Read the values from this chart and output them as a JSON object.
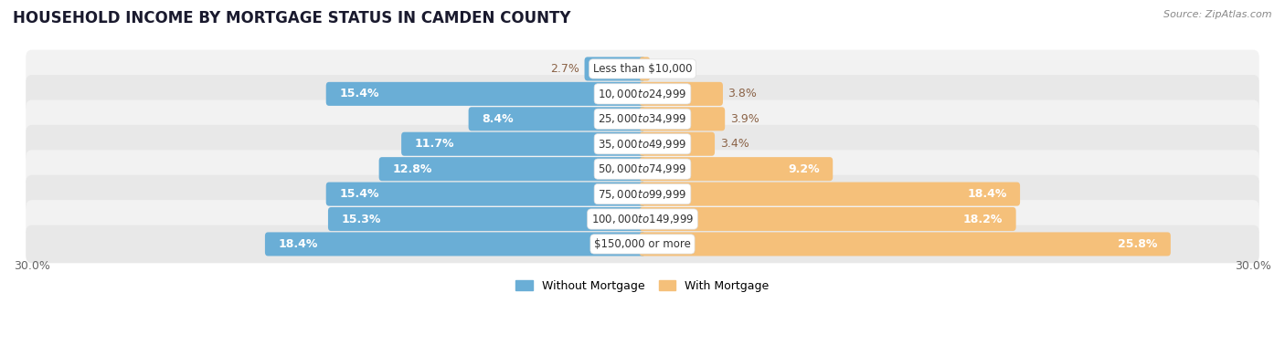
{
  "title": "HOUSEHOLD INCOME BY MORTGAGE STATUS IN CAMDEN COUNTY",
  "source": "Source: ZipAtlas.com",
  "categories": [
    "Less than $10,000",
    "$10,000 to $24,999",
    "$25,000 to $34,999",
    "$35,000 to $49,999",
    "$50,000 to $74,999",
    "$75,000 to $99,999",
    "$100,000 to $149,999",
    "$150,000 or more"
  ],
  "without_mortgage": [
    2.7,
    15.4,
    8.4,
    11.7,
    12.8,
    15.4,
    15.3,
    18.4
  ],
  "with_mortgage": [
    0.22,
    3.8,
    3.9,
    3.4,
    9.2,
    18.4,
    18.2,
    25.8
  ],
  "color_without": "#6aaed6",
  "color_with": "#f5c07a",
  "row_color_light": "#f2f2f2",
  "row_color_dark": "#e8e8e8",
  "axis_limit": 30.0,
  "legend_without": "Without Mortgage",
  "legend_with": "With Mortgage",
  "title_fontsize": 12,
  "source_fontsize": 8,
  "value_fontsize": 9,
  "category_fontsize": 8.5,
  "outside_label_color": "#8b6347",
  "inside_label_color": "#ffffff",
  "tick_label_color": "#666666"
}
